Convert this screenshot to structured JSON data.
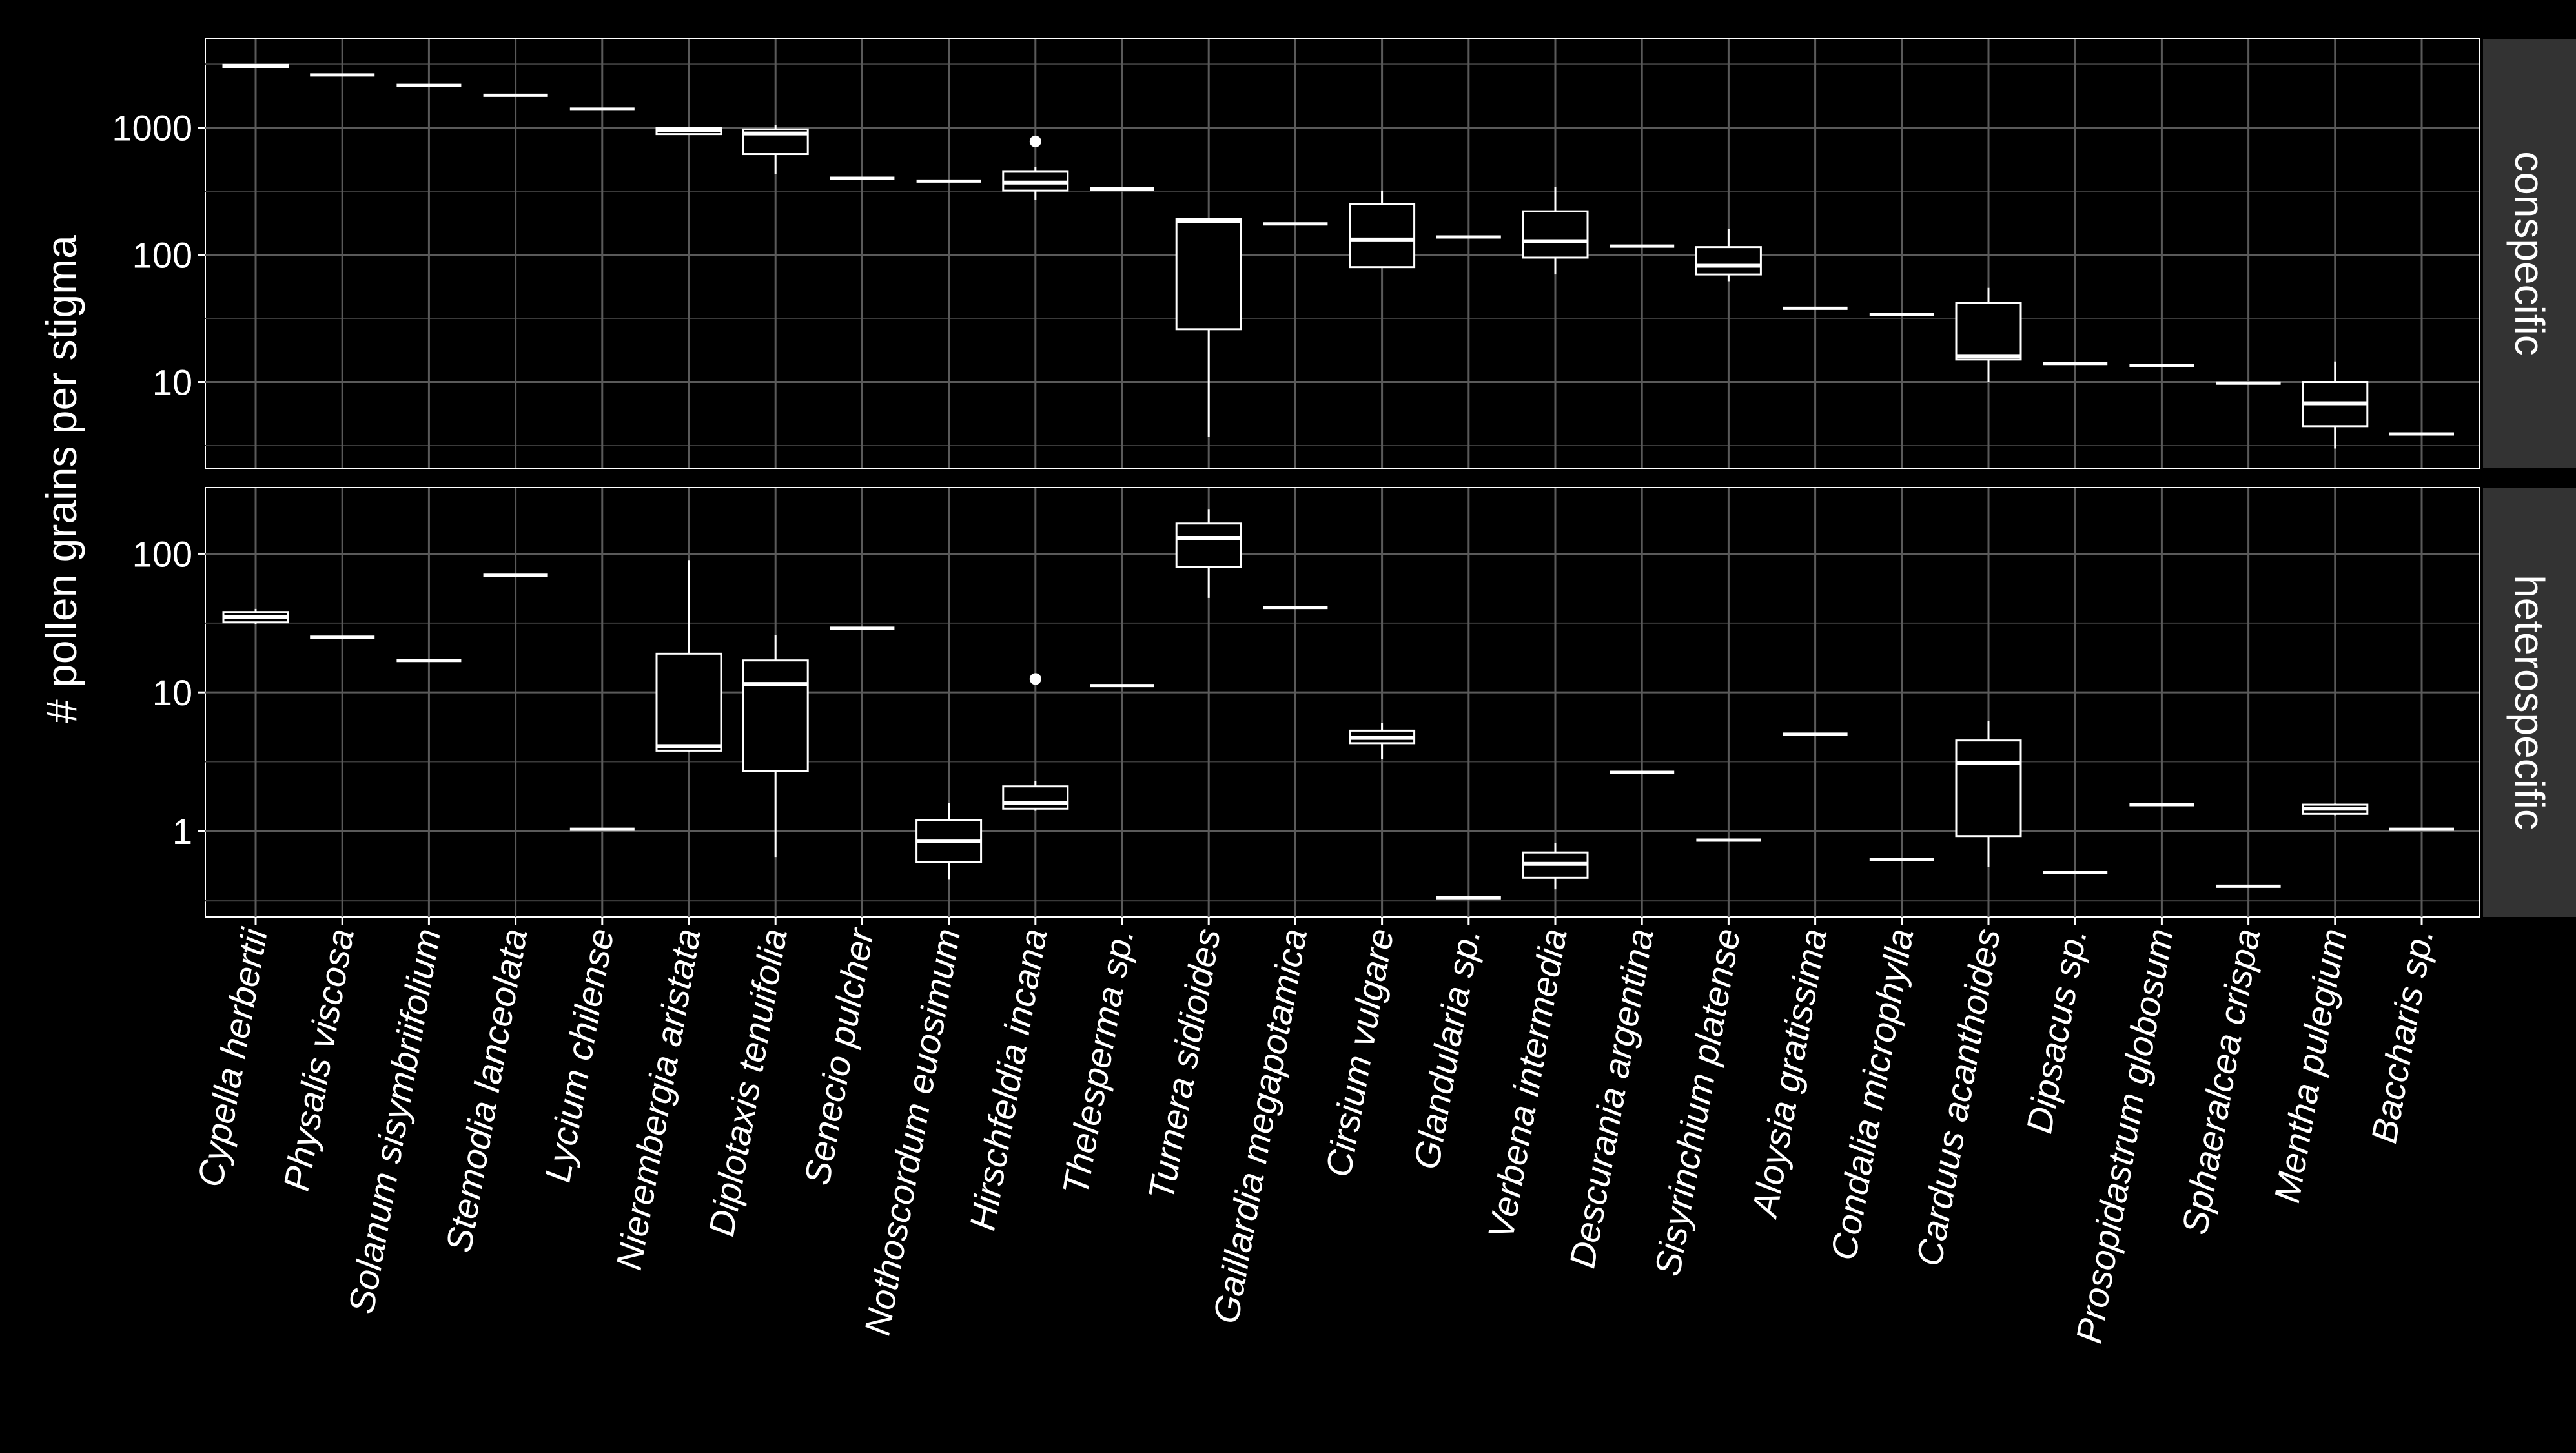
{
  "chart_data": {
    "type": "boxplot",
    "ylabel": "# pollen grains per stigma",
    "xlabel": "",
    "y_scale": "log10",
    "grid": true,
    "facet_layout": "rows",
    "categories": [
      "Cypella herbertii",
      "Physalis viscosa",
      "Solanum sisymbriifolium",
      "Stemodia lanceolata",
      "Lycium chilense",
      "Nierembergia aristata",
      "Diplotaxis tenuifolia",
      "Senecio pulcher",
      "Nothoscordum euosimum",
      "Hirschfeldia incana",
      "Thelesperma sp.",
      "Turnera sidioides",
      "Gaillardia megapotamica",
      "Cirsium vulgare",
      "Glandularia sp.",
      "Verbena intermedia",
      "Descurania argentina",
      "Sisyrinchium platense",
      "Aloysia gratissima",
      "Condalia microphylla",
      "Carduus acanthoides",
      "Dipsacus sp.",
      "Prosopidastrum globosum",
      "Sphaeralcea crispa",
      "Mentha pulegium",
      "Baccharis sp."
    ],
    "panels": [
      {
        "label": "conspecific",
        "ylim": [
          2.1,
          5000
        ],
        "yticks": [
          10,
          100,
          1000
        ],
        "ytick_labels": [
          "10",
          "100",
          "1000"
        ],
        "boxes": [
          {
            "min": 2950,
            "q1": 2980,
            "median": 3050,
            "q3": 3120,
            "max": 3150,
            "outliers": []
          },
          {
            "min": 2600,
            "q1": 2600,
            "median": 2600,
            "q3": 2600,
            "max": 2600,
            "outliers": []
          },
          {
            "min": 2150,
            "q1": 2150,
            "median": 2150,
            "q3": 2150,
            "max": 2150,
            "outliers": []
          },
          {
            "min": 1800,
            "q1": 1800,
            "median": 1800,
            "q3": 1800,
            "max": 1800,
            "outliers": []
          },
          {
            "min": 1400,
            "q1": 1400,
            "median": 1400,
            "q3": 1400,
            "max": 1400,
            "outliers": []
          },
          {
            "min": 880,
            "q1": 890,
            "median": 960,
            "q3": 990,
            "max": 1000,
            "outliers": []
          },
          {
            "min": 430,
            "q1": 620,
            "median": 900,
            "q3": 970,
            "max": 1050,
            "outliers": []
          },
          {
            "min": 400,
            "q1": 400,
            "median": 400,
            "q3": 400,
            "max": 400,
            "outliers": []
          },
          {
            "min": 380,
            "q1": 380,
            "median": 380,
            "q3": 380,
            "max": 380,
            "outliers": []
          },
          {
            "min": 270,
            "q1": 320,
            "median": 370,
            "q3": 450,
            "max": 490,
            "outliers": [
              780
            ]
          },
          {
            "min": 330,
            "q1": 330,
            "median": 330,
            "q3": 330,
            "max": 330,
            "outliers": []
          },
          {
            "min": 3.7,
            "q1": 26,
            "median": 185,
            "q3": 192,
            "max": 196,
            "outliers": []
          },
          {
            "min": 175,
            "q1": 175,
            "median": 175,
            "q3": 175,
            "max": 175,
            "outliers": []
          },
          {
            "min": 80,
            "q1": 80,
            "median": 132,
            "q3": 250,
            "max": 320,
            "outliers": []
          },
          {
            "min": 138,
            "q1": 138,
            "median": 138,
            "q3": 138,
            "max": 138,
            "outliers": []
          },
          {
            "min": 70,
            "q1": 95,
            "median": 128,
            "q3": 220,
            "max": 340,
            "outliers": []
          },
          {
            "min": 117,
            "q1": 117,
            "median": 117,
            "q3": 117,
            "max": 117,
            "outliers": []
          },
          {
            "min": 62,
            "q1": 70,
            "median": 82,
            "q3": 115,
            "max": 160,
            "outliers": []
          },
          {
            "min": 38,
            "q1": 38,
            "median": 38,
            "q3": 38,
            "max": 38,
            "outliers": []
          },
          {
            "min": 34,
            "q1": 34,
            "median": 34,
            "q3": 34,
            "max": 34,
            "outliers": []
          },
          {
            "min": 10,
            "q1": 15,
            "median": 16,
            "q3": 42,
            "max": 55,
            "outliers": []
          },
          {
            "min": 14,
            "q1": 14,
            "median": 14,
            "q3": 14,
            "max": 14,
            "outliers": []
          },
          {
            "min": 13.5,
            "q1": 13.5,
            "median": 13.5,
            "q3": 13.5,
            "max": 13.5,
            "outliers": []
          },
          {
            "min": 9.8,
            "q1": 9.8,
            "median": 9.8,
            "q3": 9.8,
            "max": 9.8,
            "outliers": []
          },
          {
            "min": 3,
            "q1": 4.5,
            "median": 6.8,
            "q3": 10,
            "max": 14.5,
            "outliers": []
          },
          {
            "min": 3.9,
            "q1": 3.9,
            "median": 3.9,
            "q3": 3.9,
            "max": 3.9,
            "outliers": []
          }
        ]
      },
      {
        "label": "heterospecific",
        "ylim": [
          0.24,
          300
        ],
        "yticks": [
          1,
          10,
          100
        ],
        "ytick_labels": [
          "1",
          "10",
          "100"
        ],
        "boxes": [
          {
            "min": 31,
            "q1": 32,
            "median": 35,
            "q3": 38,
            "max": 40,
            "outliers": []
          },
          {
            "min": 25,
            "q1": 25,
            "median": 25,
            "q3": 25,
            "max": 25,
            "outliers": []
          },
          {
            "min": 17,
            "q1": 17,
            "median": 17,
            "q3": 17,
            "max": 17,
            "outliers": []
          },
          {
            "min": 70,
            "q1": 70,
            "median": 70,
            "q3": 70,
            "max": 70,
            "outliers": []
          },
          {
            "min": 1.03,
            "q1": 1.03,
            "median": 1.03,
            "q3": 1.03,
            "max": 1.03,
            "outliers": []
          },
          {
            "min": 3.7,
            "q1": 3.8,
            "median": 4.1,
            "q3": 19,
            "max": 90,
            "outliers": []
          },
          {
            "min": 0.65,
            "q1": 2.7,
            "median": 11.5,
            "q3": 17,
            "max": 26,
            "outliers": []
          },
          {
            "min": 29,
            "q1": 29,
            "median": 29,
            "q3": 29,
            "max": 29,
            "outliers": []
          },
          {
            "min": 0.45,
            "q1": 0.6,
            "median": 0.85,
            "q3": 1.2,
            "max": 1.6,
            "outliers": []
          },
          {
            "min": 1.4,
            "q1": 1.45,
            "median": 1.6,
            "q3": 2.1,
            "max": 2.3,
            "outliers": [
              12.5
            ]
          },
          {
            "min": 11.2,
            "q1": 11.2,
            "median": 11.2,
            "q3": 11.2,
            "max": 11.2,
            "outliers": []
          },
          {
            "min": 48,
            "q1": 80,
            "median": 130,
            "q3": 165,
            "max": 210,
            "outliers": []
          },
          {
            "min": 41,
            "q1": 41,
            "median": 41,
            "q3": 41,
            "max": 41,
            "outliers": []
          },
          {
            "min": 3.3,
            "q1": 4.3,
            "median": 4.7,
            "q3": 5.3,
            "max": 6,
            "outliers": []
          },
          {
            "min": 0.33,
            "q1": 0.33,
            "median": 0.33,
            "q3": 0.33,
            "max": 0.33,
            "outliers": []
          },
          {
            "min": 0.38,
            "q1": 0.46,
            "median": 0.58,
            "q3": 0.7,
            "max": 0.82,
            "outliers": []
          },
          {
            "min": 2.65,
            "q1": 2.65,
            "median": 2.65,
            "q3": 2.65,
            "max": 2.65,
            "outliers": []
          },
          {
            "min": 0.86,
            "q1": 0.86,
            "median": 0.86,
            "q3": 0.86,
            "max": 0.86,
            "outliers": []
          },
          {
            "min": 5,
            "q1": 5,
            "median": 5,
            "q3": 5,
            "max": 5,
            "outliers": []
          },
          {
            "min": 0.62,
            "q1": 0.62,
            "median": 0.62,
            "q3": 0.62,
            "max": 0.62,
            "outliers": []
          },
          {
            "min": 0.55,
            "q1": 0.92,
            "median": 3.1,
            "q3": 4.5,
            "max": 6.2,
            "outliers": []
          },
          {
            "min": 0.5,
            "q1": 0.5,
            "median": 0.5,
            "q3": 0.5,
            "max": 0.5,
            "outliers": []
          },
          {
            "min": 1.55,
            "q1": 1.55,
            "median": 1.55,
            "q3": 1.55,
            "max": 1.55,
            "outliers": []
          },
          {
            "min": 0.4,
            "q1": 0.4,
            "median": 0.4,
            "q3": 0.4,
            "max": 0.4,
            "outliers": []
          },
          {
            "min": 1.3,
            "q1": 1.33,
            "median": 1.45,
            "q3": 1.55,
            "max": 1.58,
            "outliers": []
          },
          {
            "min": 1.03,
            "q1": 1.03,
            "median": 1.03,
            "q3": 1.03,
            "max": 1.03,
            "outliers": []
          }
        ]
      }
    ]
  }
}
